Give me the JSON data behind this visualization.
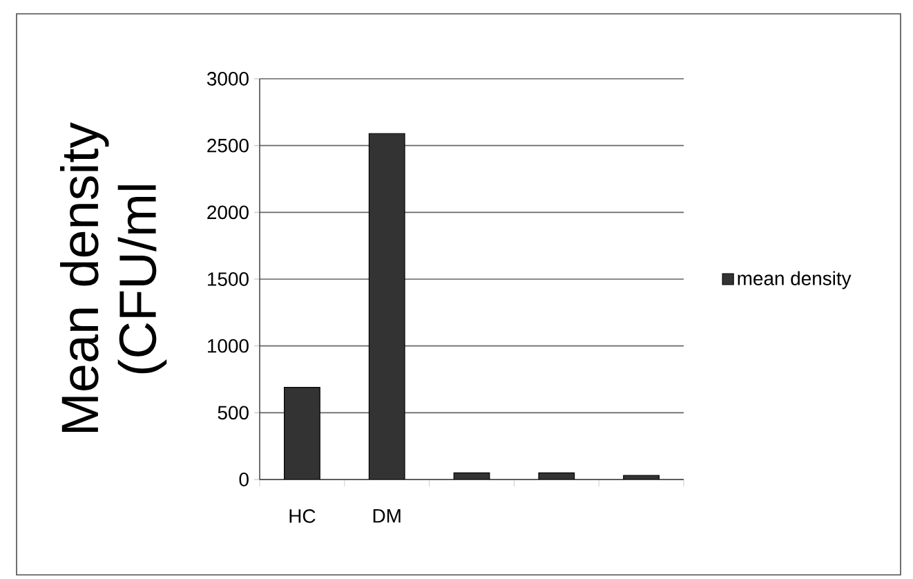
{
  "chart_data": {
    "type": "bar",
    "ylabel": "Mean density (CFU/ml",
    "categories": [
      "HC",
      "DM",
      null,
      null,
      null
    ],
    "series": [
      {
        "name": "mean density",
        "color": "#333333",
        "values": [
          690,
          2590,
          50,
          50,
          30
        ]
      }
    ],
    "ylim": [
      0,
      3000
    ],
    "yticks": [
      0,
      500,
      1000,
      1500,
      2000,
      2500,
      3000
    ],
    "grid": "y",
    "legend": "right"
  }
}
